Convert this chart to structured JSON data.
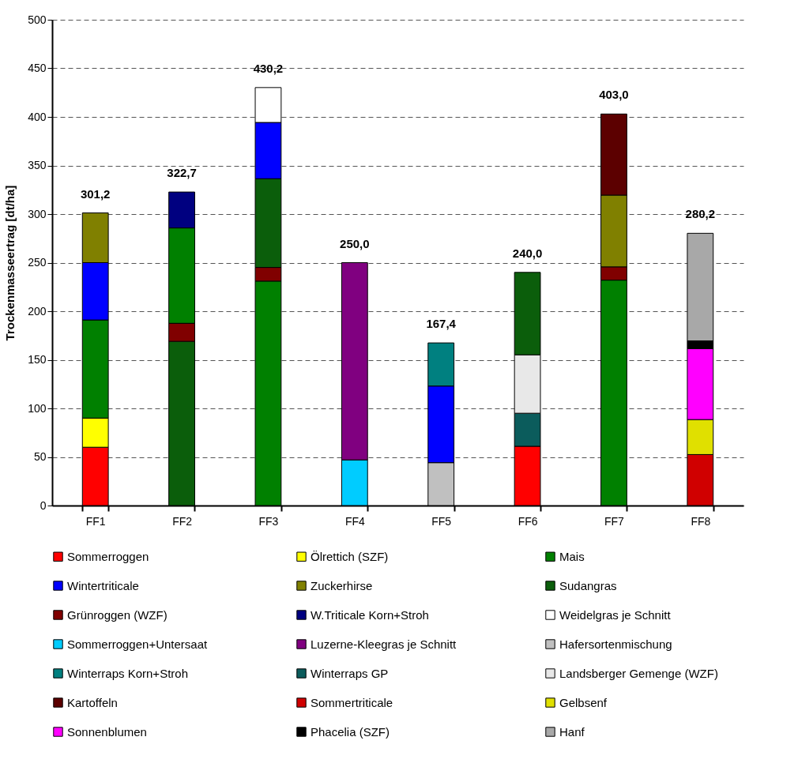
{
  "chart_data": {
    "type": "bar",
    "ylabel": "Trockenmasseertrag [dt/ha]",
    "categories": [
      "FF1",
      "FF2",
      "FF3",
      "FF4",
      "FF5",
      "FF6",
      "FF7",
      "FF8"
    ],
    "ylim": [
      0,
      500
    ],
    "yticks": [
      0,
      50,
      100,
      150,
      200,
      250,
      300,
      350,
      400,
      450,
      500
    ],
    "grid": "y",
    "legend": "bottom",
    "series": [
      {
        "name": "Sommerroggen",
        "color": "#ff0000",
        "values": [
          60,
          null,
          null,
          null,
          null,
          61,
          null,
          null
        ],
        "base": [
          0,
          null,
          null,
          null,
          null,
          0,
          null,
          null
        ]
      },
      {
        "name": "Ölrettich (SZF)",
        "color": "#ffff00",
        "values": [
          30,
          null,
          null,
          null,
          null,
          null,
          null,
          null
        ],
        "base": [
          60,
          null,
          null,
          null,
          null,
          null,
          null,
          null
        ]
      },
      {
        "name": "Mais",
        "color": "#008000",
        "values": [
          101,
          98.2,
          231,
          null,
          null,
          null,
          232,
          null
        ],
        "base": [
          90,
          187.5,
          0,
          null,
          null,
          null,
          0,
          null
        ]
      },
      {
        "name": "Wintertriticale",
        "color": "#0000ff",
        "values": [
          59,
          null,
          58,
          null,
          79,
          null,
          null,
          null
        ],
        "base": [
          191,
          null,
          336.3,
          null,
          44,
          null,
          null,
          null
        ]
      },
      {
        "name": "Zuckerhirse",
        "color": "#808000",
        "values": [
          51.2,
          null,
          null,
          null,
          null,
          null,
          74,
          null
        ],
        "base": [
          250,
          null,
          null,
          null,
          null,
          null,
          245.5,
          null
        ]
      },
      {
        "name": "Sudangras",
        "color": "#0b5e0b",
        "values": [
          null,
          169,
          91.3,
          null,
          null,
          85,
          null,
          null
        ],
        "base": [
          null,
          0,
          245,
          null,
          null,
          155,
          null,
          null
        ]
      },
      {
        "name": "Grünroggen (WZF)",
        "color": "#800000",
        "values": [
          null,
          18.5,
          14,
          null,
          null,
          null,
          13.5,
          null
        ],
        "base": [
          null,
          169,
          231,
          null,
          null,
          null,
          232,
          null
        ]
      },
      {
        "name": "W.Triticale Korn+Stroh",
        "color": "#000080",
        "values": [
          null,
          37,
          null,
          null,
          null,
          null,
          null,
          null
        ],
        "base": [
          null,
          285.7,
          null,
          null,
          null,
          null,
          null,
          null
        ]
      },
      {
        "name": "Weidelgras je Schnitt",
        "color": "#ffffff",
        "values": [
          null,
          null,
          35.9,
          null,
          null,
          null,
          null,
          null
        ],
        "base": [
          null,
          null,
          394.3,
          null,
          null,
          null,
          null,
          null
        ]
      },
      {
        "name": "Sommerroggen+Untersaat",
        "color": "#00ccff",
        "values": [
          null,
          null,
          null,
          47,
          null,
          null,
          null,
          null
        ],
        "base": [
          null,
          null,
          null,
          0,
          null,
          null,
          null,
          null
        ]
      },
      {
        "name": "Luzerne-Kleegras je Schnitt",
        "color": "#800080",
        "values": [
          null,
          null,
          null,
          203,
          null,
          null,
          null,
          null
        ],
        "base": [
          null,
          null,
          null,
          47,
          null,
          null,
          null,
          null
        ]
      },
      {
        "name": "Hafersortenmischung",
        "color": "#c0c0c0",
        "values": [
          null,
          null,
          null,
          null,
          44,
          null,
          null,
          null
        ],
        "base": [
          null,
          null,
          null,
          null,
          0,
          null,
          null,
          null
        ]
      },
      {
        "name": "Winterraps Korn+Stroh",
        "color": "#008080",
        "values": [
          null,
          null,
          null,
          null,
          44.4,
          null,
          null,
          null
        ],
        "base": [
          null,
          null,
          null,
          null,
          123,
          null,
          null,
          null
        ]
      },
      {
        "name": "Winterraps GP",
        "color": "#0b5c5c",
        "values": [
          null,
          null,
          null,
          null,
          null,
          34,
          null,
          null
        ],
        "base": [
          null,
          null,
          null,
          null,
          null,
          61,
          null,
          null
        ]
      },
      {
        "name": "Landsberger Gemenge (WZF)",
        "color": "#e8e8e8",
        "values": [
          null,
          null,
          null,
          null,
          null,
          60,
          null,
          null
        ],
        "base": [
          null,
          null,
          null,
          null,
          null,
          95,
          null,
          null
        ]
      },
      {
        "name": "Kartoffeln",
        "color": "#5c0000",
        "values": [
          null,
          null,
          null,
          null,
          null,
          null,
          83.5,
          null
        ],
        "base": [
          null,
          null,
          null,
          null,
          null,
          null,
          319.5,
          null
        ]
      },
      {
        "name": "Sommertriticale",
        "color": "#d00000",
        "values": [
          null,
          null,
          null,
          null,
          null,
          null,
          null,
          52.5
        ],
        "base": [
          null,
          null,
          null,
          null,
          null,
          null,
          null,
          0
        ]
      },
      {
        "name": "Gelbsenf",
        "color": "#e0e000",
        "values": [
          null,
          null,
          null,
          null,
          null,
          null,
          null,
          36
        ],
        "base": [
          null,
          null,
          null,
          null,
          null,
          null,
          null,
          52.5
        ]
      },
      {
        "name": "Sonnenblumen",
        "color": "#ff00ff",
        "values": [
          null,
          null,
          null,
          null,
          null,
          null,
          null,
          73
        ],
        "base": [
          null,
          null,
          null,
          null,
          null,
          null,
          null,
          88.5
        ]
      },
      {
        "name": "Phacelia (SZF)",
        "color": "#000000",
        "values": [
          null,
          null,
          null,
          null,
          null,
          null,
          null,
          8
        ],
        "base": [
          null,
          null,
          null,
          null,
          null,
          null,
          null,
          161.5
        ]
      },
      {
        "name": "Hanf",
        "color": "#a8a8a8",
        "values": [
          null,
          null,
          null,
          null,
          null,
          null,
          null,
          110.7
        ],
        "base": [
          null,
          null,
          null,
          null,
          null,
          null,
          null,
          169.5
        ]
      }
    ],
    "annotations": [
      {
        "text": "301,2",
        "x": "FF1",
        "y": 301.2
      },
      {
        "text": "322,7",
        "x": "FF2",
        "y": 322.7
      },
      {
        "text": "430,2",
        "x": "FF3",
        "y": 430.2
      },
      {
        "text": "250,0",
        "x": "FF4",
        "y": 250.0
      },
      {
        "text": "167,4",
        "x": "FF5",
        "y": 167.4
      },
      {
        "text": "240,0",
        "x": "FF6",
        "y": 240.0
      },
      {
        "text": "403,0",
        "x": "FF7",
        "y": 403.0
      },
      {
        "text": "280,2",
        "x": "FF8",
        "y": 280.2
      }
    ]
  }
}
